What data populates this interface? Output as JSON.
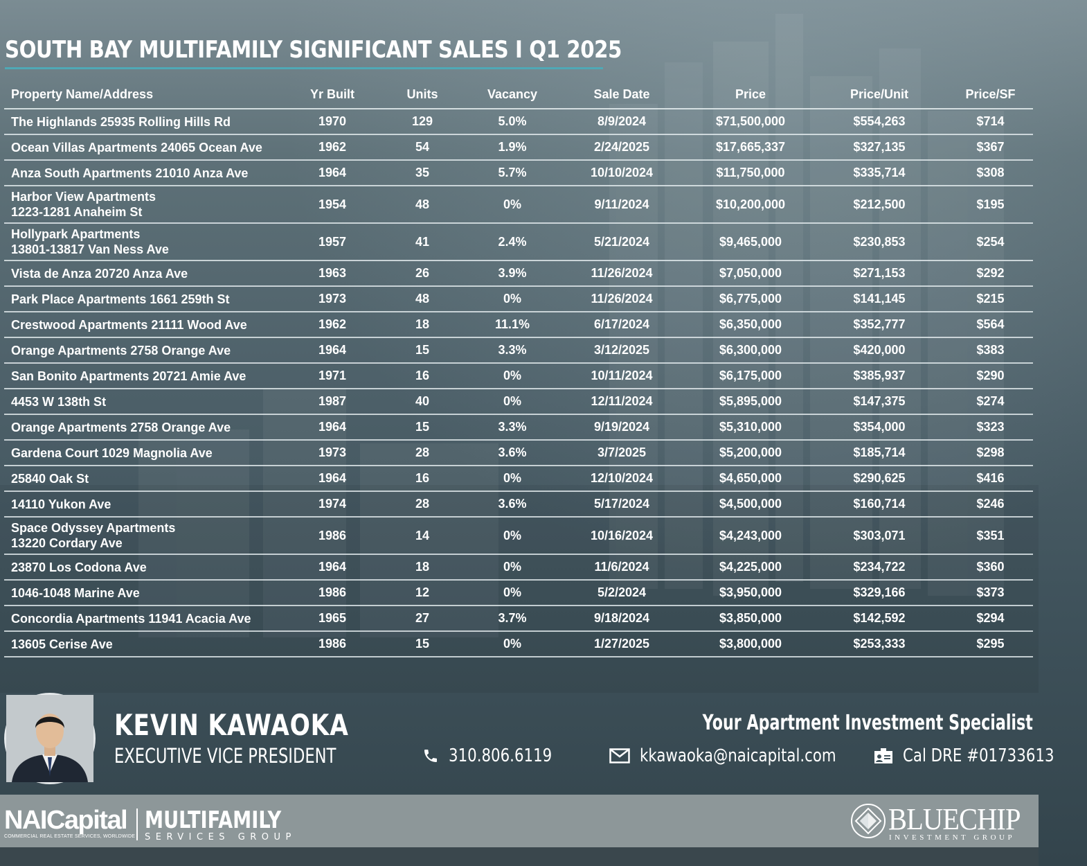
{
  "report": {
    "title": "SOUTH BAY MULTIFAMILY SIGNIFICANT SALES I Q1 2025"
  },
  "table": {
    "headers": [
      "Property Name/Address",
      "Yr Built",
      "Units",
      "Vacancy",
      "Sale Date",
      "Price",
      "Price/Unit",
      "Price/SF"
    ],
    "rows": [
      {
        "name": "The Highlands 25935 Rolling Hills Rd",
        "name2": "",
        "yr_built": "1970",
        "units": "129",
        "vacancy": "5.0%",
        "sale_date": "8/9/2024",
        "price": "$71,500,000",
        "price_unit": "$554,263",
        "price_sf": "$714"
      },
      {
        "name": "Ocean Villas Apartments 24065 Ocean Ave",
        "name2": "",
        "yr_built": "1962",
        "units": "54",
        "vacancy": "1.9%",
        "sale_date": "2/24/2025",
        "price": "$17,665,337",
        "price_unit": "$327,135",
        "price_sf": "$367"
      },
      {
        "name": "Anza South Apartments 21010 Anza Ave",
        "name2": "",
        "yr_built": "1964",
        "units": "35",
        "vacancy": "5.7%",
        "sale_date": "10/10/2024",
        "price": "$11,750,000",
        "price_unit": "$335,714",
        "price_sf": "$308"
      },
      {
        "name": "Harbor View Apartments",
        "name2": "1223-1281 Anaheim St",
        "yr_built": "1954",
        "units": "48",
        "vacancy": "0%",
        "sale_date": "9/11/2024",
        "price": "$10,200,000",
        "price_unit": "$212,500",
        "price_sf": "$195"
      },
      {
        "name": "Hollypark Apartments",
        "name2": "13801-13817 Van Ness Ave",
        "yr_built": "1957",
        "units": "41",
        "vacancy": "2.4%",
        "sale_date": "5/21/2024",
        "price": "$9,465,000",
        "price_unit": "$230,853",
        "price_sf": "$254"
      },
      {
        "name": "Vista de Anza 20720 Anza Ave",
        "name2": "",
        "yr_built": "1963",
        "units": "26",
        "vacancy": "3.9%",
        "sale_date": "11/26/2024",
        "price": "$7,050,000",
        "price_unit": "$271,153",
        "price_sf": "$292"
      },
      {
        "name": "Park Place Apartments 1661 259th St",
        "name2": "",
        "yr_built": "1973",
        "units": "48",
        "vacancy": "0%",
        "sale_date": "11/26/2024",
        "price": "$6,775,000",
        "price_unit": "$141,145",
        "price_sf": "$215"
      },
      {
        "name": "Crestwood Apartments 21111 Wood Ave",
        "name2": "",
        "yr_built": "1962",
        "units": "18",
        "vacancy": "11.1%",
        "sale_date": "6/17/2024",
        "price": "$6,350,000",
        "price_unit": "$352,777",
        "price_sf": "$564"
      },
      {
        "name": "Orange Apartments 2758 Orange Ave",
        "name2": "",
        "yr_built": "1964",
        "units": "15",
        "vacancy": "3.3%",
        "sale_date": "3/12/2025",
        "price": "$6,300,000",
        "price_unit": "$420,000",
        "price_sf": "$383"
      },
      {
        "name": "San Bonito Apartments 20721 Amie Ave",
        "name2": "",
        "yr_built": "1971",
        "units": "16",
        "vacancy": "0%",
        "sale_date": "10/11/2024",
        "price": "$6,175,000",
        "price_unit": "$385,937",
        "price_sf": "$290"
      },
      {
        "name": "4453 W 138th St",
        "name2": "",
        "yr_built": "1987",
        "units": "40",
        "vacancy": "0%",
        "sale_date": "12/11/2024",
        "price": "$5,895,000",
        "price_unit": "$147,375",
        "price_sf": "$274"
      },
      {
        "name": "Orange Apartments 2758 Orange Ave",
        "name2": "",
        "yr_built": "1964",
        "units": "15",
        "vacancy": "3.3%",
        "sale_date": "9/19/2024",
        "price": "$5,310,000",
        "price_unit": "$354,000",
        "price_sf": "$323"
      },
      {
        "name": "Gardena Court 1029 Magnolia Ave",
        "name2": "",
        "yr_built": "1973",
        "units": "28",
        "vacancy": "3.6%",
        "sale_date": "3/7/2025",
        "price": "$5,200,000",
        "price_unit": "$185,714",
        "price_sf": "$298"
      },
      {
        "name": "25840 Oak St",
        "name2": "",
        "yr_built": "1964",
        "units": "16",
        "vacancy": "0%",
        "sale_date": "12/10/2024",
        "price": "$4,650,000",
        "price_unit": "$290,625",
        "price_sf": "$416"
      },
      {
        "name": "14110 Yukon Ave",
        "name2": "",
        "yr_built": "1974",
        "units": "28",
        "vacancy": "3.6%",
        "sale_date": "5/17/2024",
        "price": "$4,500,000",
        "price_unit": "$160,714",
        "price_sf": "$246"
      },
      {
        "name": "Space Odyssey Apartments",
        "name2": "13220 Cordary Ave",
        "yr_built": "1986",
        "units": "14",
        "vacancy": "0%",
        "sale_date": "10/16/2024",
        "price": "$4,243,000",
        "price_unit": "$303,071",
        "price_sf": "$351"
      },
      {
        "name": "23870 Los Codona Ave",
        "name2": "",
        "yr_built": "1964",
        "units": "18",
        "vacancy": "0%",
        "sale_date": "11/6/2024",
        "price": "$4,225,000",
        "price_unit": "$234,722",
        "price_sf": "$360"
      },
      {
        "name": "1046-1048 Marine Ave",
        "name2": "",
        "yr_built": "1986",
        "units": "12",
        "vacancy": "0%",
        "sale_date": "5/2/2024",
        "price": "$3,950,000",
        "price_unit": "$329,166",
        "price_sf": "$373"
      },
      {
        "name": "Concordia Apartments 11941 Acacia Ave",
        "name2": "",
        "yr_built": "1965",
        "units": "27",
        "vacancy": "3.7%",
        "sale_date": "9/18/2024",
        "price": "$3,850,000",
        "price_unit": "$142,592",
        "price_sf": "$294"
      },
      {
        "name": "13605 Cerise Ave",
        "name2": "",
        "yr_built": "1986",
        "units": "15",
        "vacancy": "0%",
        "sale_date": "1/27/2025",
        "price": "$3,800,000",
        "price_unit": "$253,333",
        "price_sf": "$295"
      }
    ]
  },
  "contact": {
    "name": "KEVIN KAWAOKA",
    "role": "EXECUTIVE VICE PRESIDENT",
    "tagline": "Your Apartment Investment Specialist",
    "phone": "310.806.6119",
    "email": "kkawaoka@naicapital.com",
    "license": "Cal DRE #01733613",
    "icons": {
      "phone": "phone-icon",
      "email": "envelope-icon",
      "license": "id-card-icon"
    }
  },
  "footer": {
    "nai_logo": "NAICapital",
    "nai_tagline": "COMMERCIAL REAL ESTATE SERVICES, WORLDWIDE",
    "multifamily_main": "MULTIFAMILY",
    "multifamily_sub": "SERVICES GROUP",
    "bluechip_main": "BLUECHIP",
    "bluechip_sub": "INVESTMENT GROUP"
  },
  "colors": {
    "accent_line": "#4fa9b6",
    "footer_band": "#8d9799",
    "text": "#ffffff"
  }
}
